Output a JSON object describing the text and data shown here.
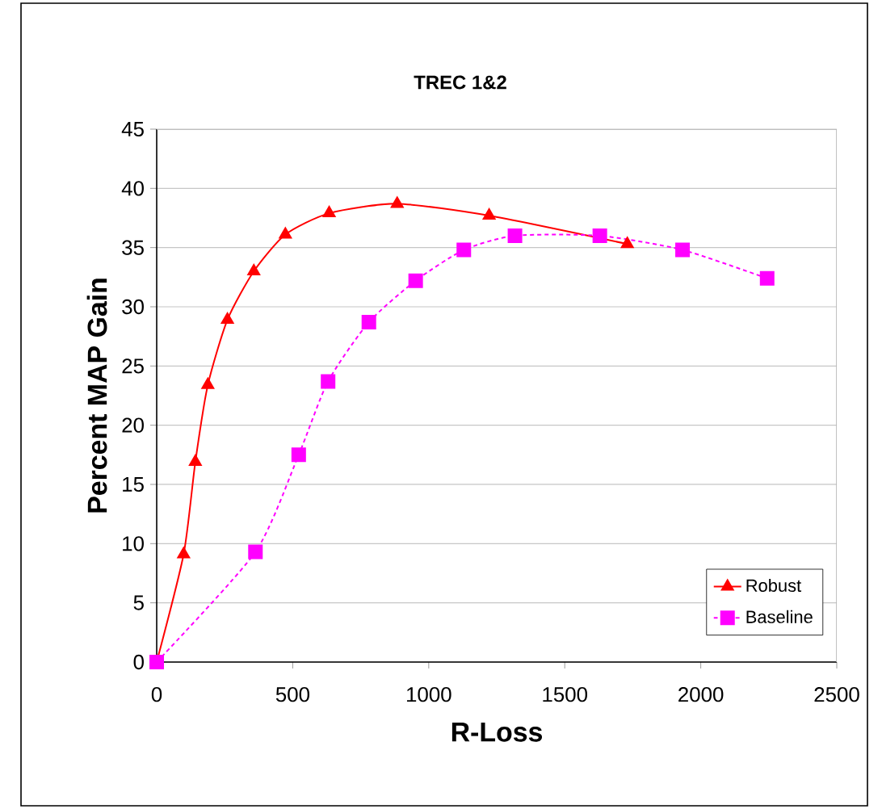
{
  "chart_data": {
    "type": "line",
    "title": "TREC 1&2",
    "xlabel": "R-Loss",
    "ylabel": "Percent MAP Gain",
    "series": [
      {
        "name": "Robust",
        "color": "#ff0000",
        "marker": "triangle",
        "line_style": "solid",
        "x": [
          0,
          99,
          142,
          188,
          260,
          357,
          473,
          634,
          884,
          1222,
          1730
        ],
        "values": [
          0,
          9.1,
          16.9,
          23.4,
          28.9,
          33.0,
          36.1,
          37.9,
          38.7,
          37.7,
          35.3
        ]
      },
      {
        "name": "Baseline",
        "color": "#ff00ff",
        "marker": "square",
        "line_style": "dashed",
        "x": [
          0,
          363,
          522,
          630,
          780,
          952,
          1129,
          1317,
          1629,
          1933,
          2244
        ],
        "values": [
          0,
          9.3,
          17.5,
          23.7,
          28.7,
          32.2,
          34.8,
          36.0,
          36.0,
          34.8,
          32.4
        ]
      }
    ],
    "xlim": [
      0,
      2500
    ],
    "ylim": [
      0,
      45
    ],
    "xticks": [
      0,
      500,
      1000,
      1500,
      2000,
      2500
    ],
    "yticks": [
      0,
      5,
      10,
      15,
      20,
      25,
      30,
      35,
      40,
      45
    ],
    "grid": "y",
    "legend": "bottom right"
  }
}
